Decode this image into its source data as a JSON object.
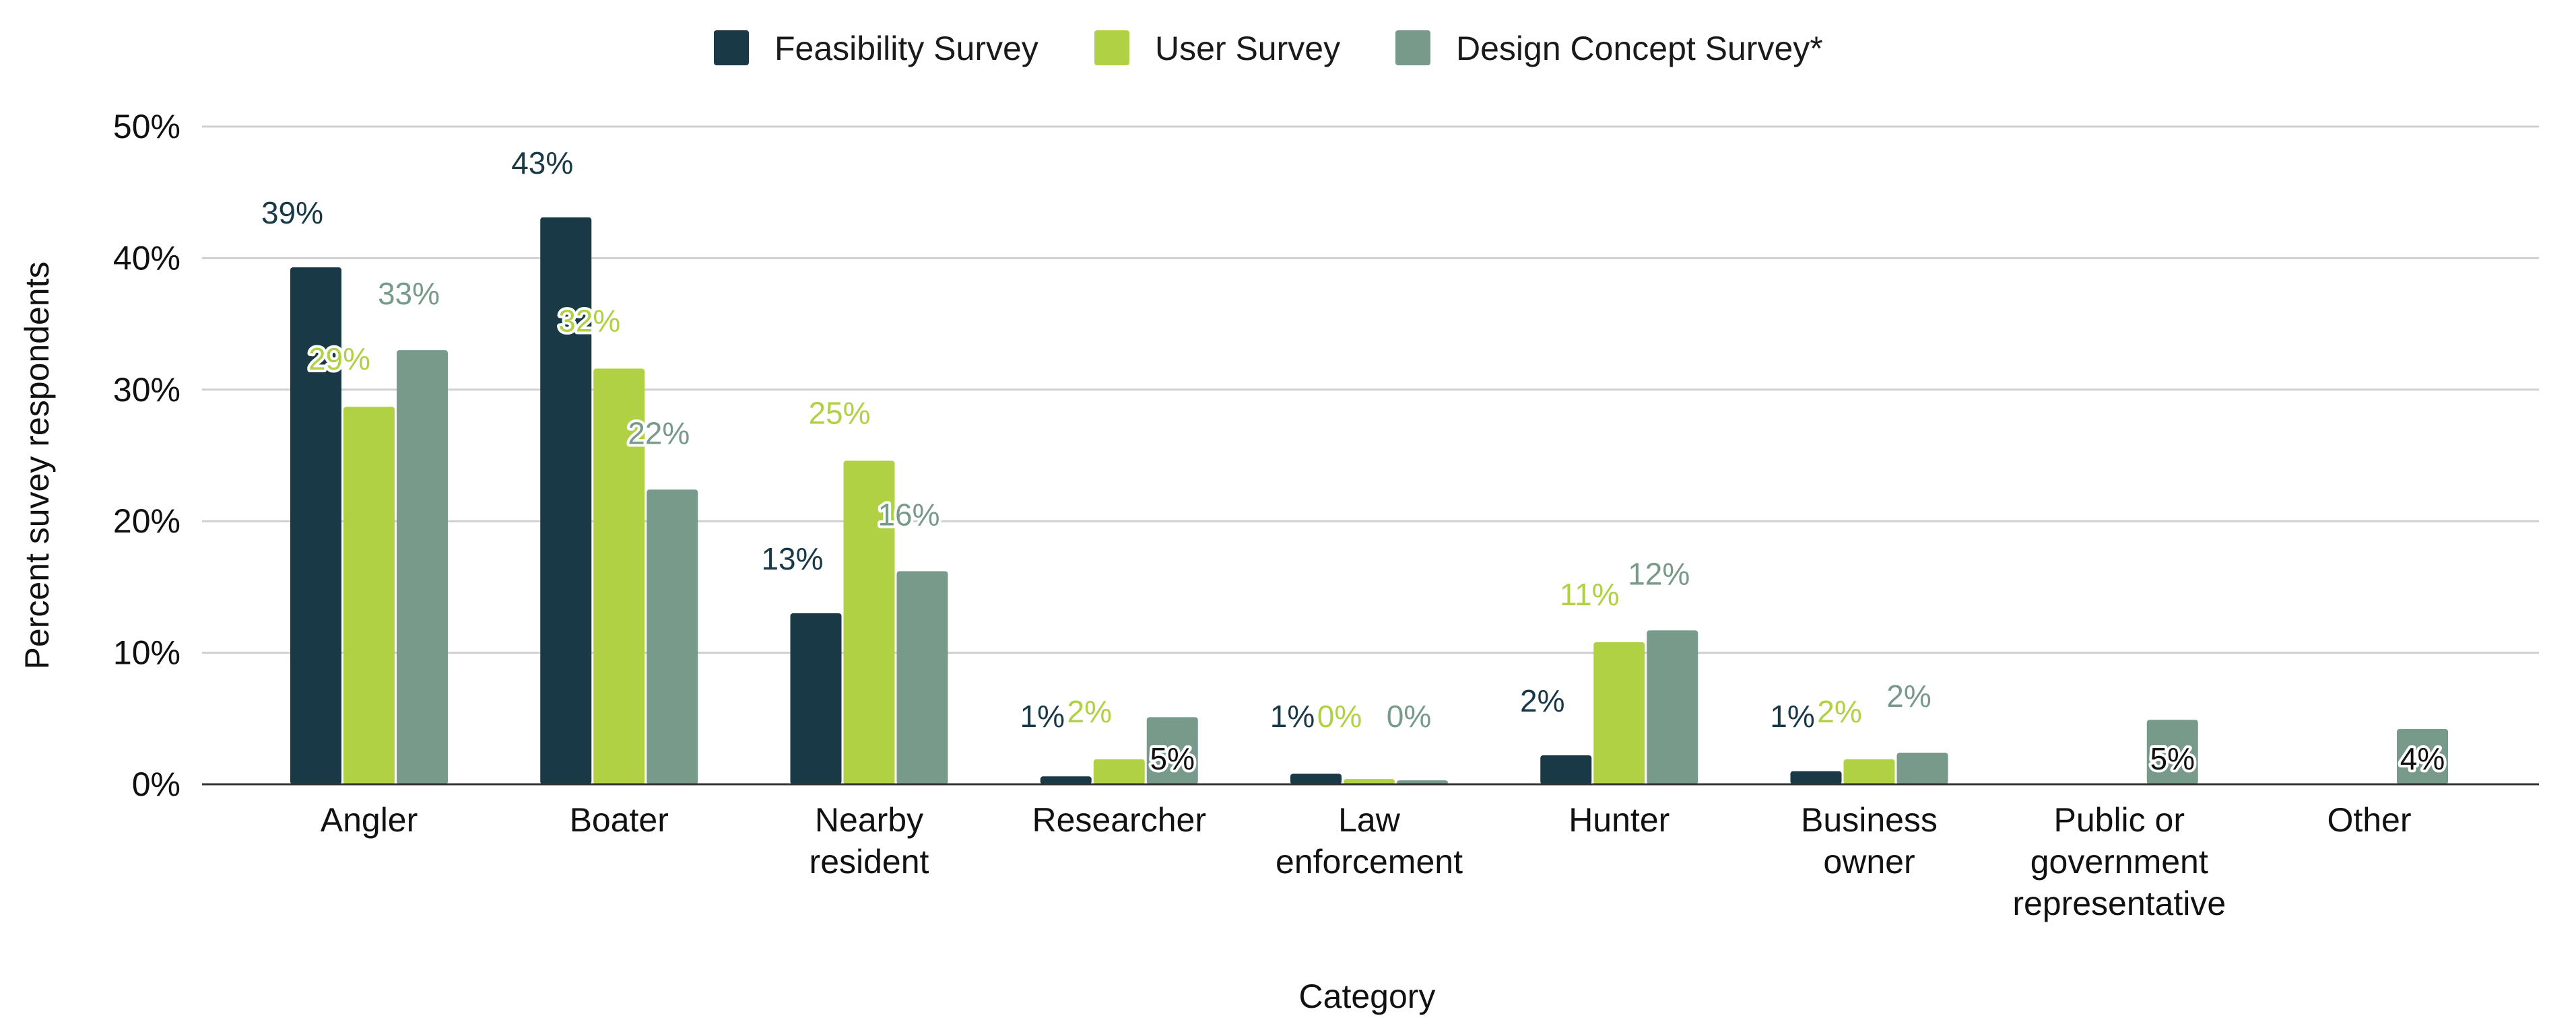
{
  "chart_data": {
    "type": "bar",
    "title": "",
    "xlabel": "Category",
    "ylabel": "Percent suvey respondents",
    "ylim": [
      0,
      50
    ],
    "yticks": [
      0,
      10,
      20,
      30,
      40,
      50
    ],
    "ytick_labels": [
      "0%",
      "10%",
      "20%",
      "30%",
      "40%",
      "50%"
    ],
    "grid": true,
    "legend_position": "top-center",
    "categories": [
      [
        "Angler"
      ],
      [
        "Boater"
      ],
      [
        "Nearby",
        "resident"
      ],
      [
        "Researcher"
      ],
      [
        "Law",
        "enforcement"
      ],
      [
        "Hunter"
      ],
      [
        "Business",
        "owner"
      ],
      [
        "Public or",
        "government",
        "representative"
      ],
      [
        "Other"
      ]
    ],
    "series": [
      {
        "name": "Feasibility Survey",
        "color": "#193947",
        "label_color": "#193947",
        "values": [
          39.3,
          43.1,
          13.0,
          0.6,
          0.8,
          2.2,
          1.0,
          null,
          null
        ],
        "labels": [
          "39%",
          "43%",
          "13%",
          "1%",
          "1%",
          "2%",
          "1%",
          null,
          null
        ]
      },
      {
        "name": "User Survey",
        "color": "#b1d145",
        "label_color": "#b1d145",
        "values": [
          28.7,
          31.6,
          24.6,
          1.9,
          0.4,
          10.8,
          1.9,
          null,
          null
        ],
        "labels": [
          "29%",
          "32%",
          "25%",
          "2%",
          "0%",
          "11%",
          "2%",
          null,
          null
        ]
      },
      {
        "name": "Design Concept Survey*",
        "color": "#789a8b",
        "label_color": "#789a8b",
        "values": [
          33.0,
          22.4,
          16.2,
          5.1,
          0.3,
          11.7,
          2.4,
          4.9,
          4.2
        ],
        "labels": [
          "33%",
          "22%",
          "16%",
          "5%",
          "0%",
          "12%",
          "2%",
          "5%",
          "4%"
        ]
      }
    ]
  }
}
